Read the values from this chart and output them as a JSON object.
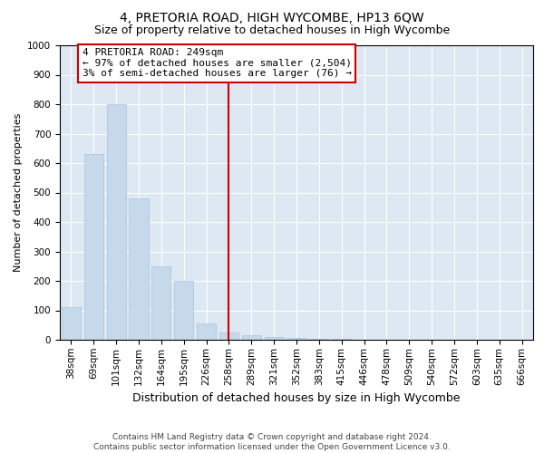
{
  "title": "4, PRETORIA ROAD, HIGH WYCOMBE, HP13 6QW",
  "subtitle": "Size of property relative to detached houses in High Wycombe",
  "xlabel": "Distribution of detached houses by size in High Wycombe",
  "ylabel": "Number of detached properties",
  "categories": [
    "38sqm",
    "69sqm",
    "101sqm",
    "132sqm",
    "164sqm",
    "195sqm",
    "226sqm",
    "258sqm",
    "289sqm",
    "321sqm",
    "352sqm",
    "383sqm",
    "415sqm",
    "446sqm",
    "478sqm",
    "509sqm",
    "540sqm",
    "572sqm",
    "603sqm",
    "635sqm",
    "666sqm"
  ],
  "values": [
    110,
    630,
    800,
    480,
    250,
    200,
    55,
    25,
    15,
    8,
    5,
    3,
    2,
    1,
    0,
    0,
    0,
    0,
    0,
    0,
    0
  ],
  "bar_color": "#c5d9ea",
  "bar_edge_color": "#aac4da",
  "vline_x": 7.0,
  "vline_color": "#cc0000",
  "annotation_text": "4 PRETORIA ROAD: 249sqm\n← 97% of detached houses are smaller (2,504)\n3% of semi-detached houses are larger (76) →",
  "annotation_box_color": "#ffffff",
  "annotation_box_edge": "#cc0000",
  "ylim": [
    0,
    1000
  ],
  "yticks": [
    0,
    100,
    200,
    300,
    400,
    500,
    600,
    700,
    800,
    900,
    1000
  ],
  "background_color": "#dde8f3",
  "grid_color": "#ffffff",
  "footer": "Contains HM Land Registry data © Crown copyright and database right 2024.\nContains public sector information licensed under the Open Government Licence v3.0.",
  "title_fontsize": 10,
  "subtitle_fontsize": 9,
  "xlabel_fontsize": 9,
  "ylabel_fontsize": 8,
  "tick_fontsize": 7.5,
  "annotation_fontsize": 8,
  "footer_fontsize": 6.5
}
